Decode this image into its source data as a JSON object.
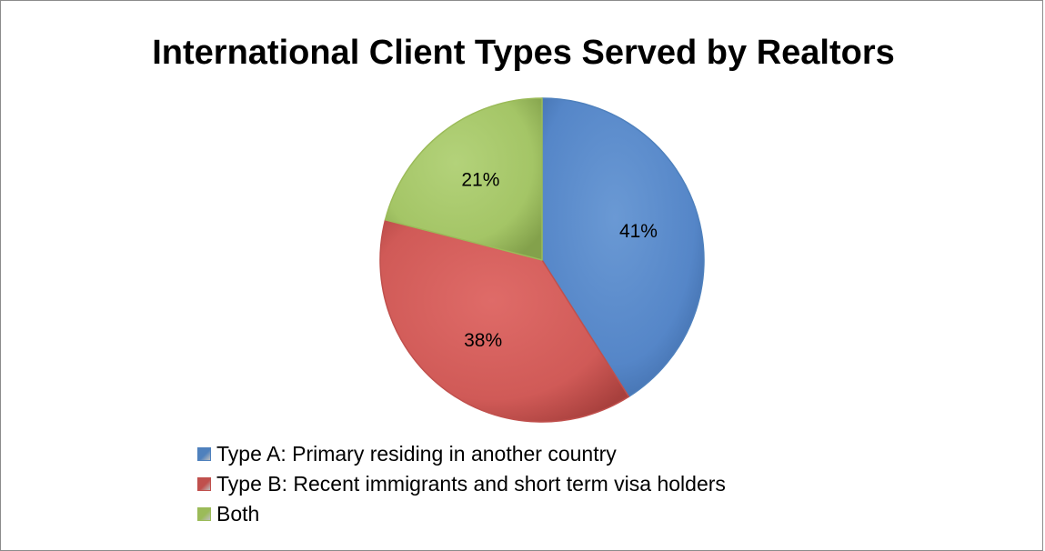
{
  "chart_data": {
    "type": "pie",
    "title": "International Client Types Served by Realtors",
    "categories": [
      "Type A: Primary residing in another country",
      "Type B: Recent immigrants and short term visa holders",
      "Both"
    ],
    "values": [
      41,
      38,
      21
    ],
    "data_labels": [
      "41%",
      "38%",
      "21%"
    ],
    "colors": [
      "#4f81bd",
      "#c0504d",
      "#9bbb59"
    ],
    "legend_position": "bottom-left"
  }
}
